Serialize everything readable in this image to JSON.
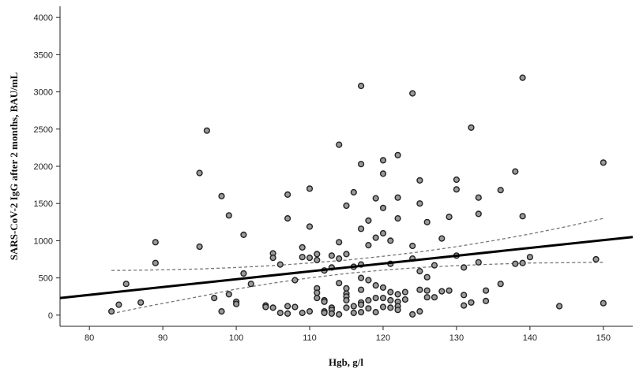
{
  "chart_data": {
    "type": "scatter",
    "xlabel": "Hgb, g/l",
    "ylabel": "SARS-CoV-2 IgG after 2 months, BAU/mL",
    "xlim": [
      76,
      154
    ],
    "ylim": [
      -150,
      4150
    ],
    "x_ticks": [
      80,
      90,
      100,
      110,
      120,
      130,
      140,
      150
    ],
    "y_ticks": [
      0,
      500,
      1000,
      1500,
      2000,
      2500,
      3000,
      3500,
      4000
    ],
    "grid": false,
    "regression_line": {
      "x": [
        76,
        154
      ],
      "y": [
        230,
        1050
      ]
    },
    "ci_upper": {
      "x": [
        83,
        88,
        95,
        100,
        105,
        110,
        115,
        120,
        125,
        130,
        135,
        140,
        145,
        150
      ],
      "y": [
        600,
        605,
        620,
        640,
        665,
        700,
        740,
        790,
        850,
        920,
        1000,
        1090,
        1190,
        1300
      ]
    },
    "ci_lower": {
      "x": [
        83,
        88,
        95,
        100,
        105,
        110,
        115,
        120,
        125,
        130,
        135,
        140,
        145,
        150
      ],
      "y": [
        20,
        120,
        250,
        350,
        430,
        500,
        560,
        605,
        640,
        665,
        685,
        700,
        705,
        710
      ]
    },
    "points": {
      "x": [
        83,
        84,
        85,
        87,
        89,
        89,
        95,
        95,
        96,
        97,
        98,
        98,
        99,
        99,
        100,
        100,
        101,
        101,
        102,
        104,
        104,
        105,
        105,
        105,
        106,
        106,
        107,
        107,
        107,
        107,
        108,
        108,
        109,
        109,
        109,
        110,
        110,
        110,
        110,
        111,
        111,
        111,
        111,
        111,
        112,
        112,
        112,
        112,
        112,
        113,
        113,
        113,
        113,
        113,
        114,
        114,
        114,
        114,
        114,
        115,
        115,
        115,
        115,
        115,
        115,
        115,
        116,
        116,
        116,
        116,
        117,
        117,
        117,
        117,
        117,
        117,
        117,
        117,
        117,
        118,
        118,
        118,
        118,
        118,
        119,
        119,
        119,
        119,
        119,
        120,
        120,
        120,
        120,
        120,
        120,
        120,
        121,
        121,
        121,
        121,
        121,
        122,
        122,
        122,
        122,
        122,
        122,
        122,
        123,
        123,
        124,
        124,
        124,
        124,
        125,
        125,
        125,
        125,
        125,
        126,
        126,
        126,
        126,
        127,
        127,
        128,
        128,
        129,
        129,
        130,
        130,
        130,
        131,
        131,
        131,
        132,
        132,
        133,
        133,
        133,
        134,
        134,
        136,
        136,
        138,
        138,
        139,
        139,
        139,
        140,
        144,
        149,
        150,
        150
      ],
      "y": [
        50,
        140,
        420,
        170,
        980,
        700,
        1910,
        920,
        2480,
        230,
        1600,
        50,
        1340,
        280,
        180,
        150,
        1080,
        560,
        420,
        130,
        110,
        830,
        770,
        100,
        680,
        30,
        1620,
        1300,
        120,
        20,
        470,
        110,
        910,
        780,
        30,
        1700,
        1190,
        770,
        50,
        820,
        740,
        360,
        300,
        230,
        600,
        200,
        180,
        50,
        30,
        800,
        640,
        100,
        70,
        20,
        2290,
        980,
        760,
        430,
        10,
        1470,
        820,
        360,
        290,
        250,
        200,
        100,
        1650,
        650,
        120,
        30,
        3080,
        2030,
        1160,
        680,
        500,
        340,
        170,
        140,
        40,
        1270,
        940,
        470,
        200,
        90,
        1570,
        1040,
        400,
        230,
        40,
        2080,
        1900,
        1440,
        1100,
        370,
        230,
        110,
        1000,
        690,
        310,
        200,
        100,
        2150,
        1580,
        1300,
        280,
        180,
        120,
        70,
        310,
        210,
        2980,
        930,
        760,
        10,
        1810,
        1500,
        590,
        340,
        50,
        1250,
        510,
        330,
        240,
        670,
        240,
        1030,
        320,
        1320,
        330,
        1820,
        1690,
        800,
        640,
        270,
        130,
        2520,
        170,
        1580,
        1360,
        710,
        330,
        190,
        1680,
        420,
        1930,
        690,
        3190,
        1330,
        700,
        780,
        120,
        750,
        2050,
        160
      ]
    }
  }
}
